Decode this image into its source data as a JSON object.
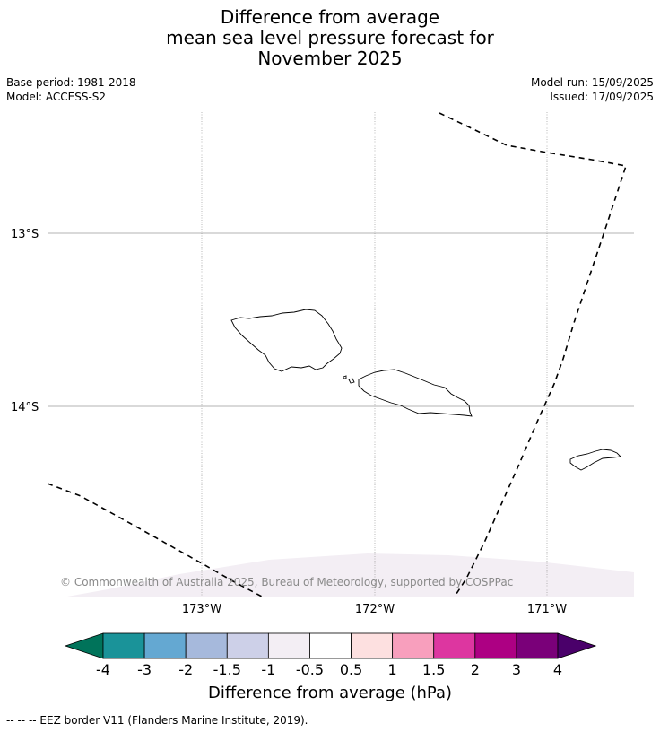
{
  "title": {
    "line1": "Difference from average",
    "line2": "mean sea level pressure forecast for",
    "line3": "November 2025"
  },
  "meta": {
    "base_period": "Base period: 1981-2018",
    "model": "Model: ACCESS-S2",
    "model_run": "Model run: 15/09/2025",
    "issued": "Issued: 17/09/2025"
  },
  "map": {
    "lat_labels": [
      "13°S",
      "14°S"
    ],
    "lon_labels": [
      "173°W",
      "172°W",
      "171°W"
    ],
    "copyright": "© Commonwealth of Australia 2025, Bureau of Meteorology, supported by COSPPac",
    "land_outline_color": "#000000",
    "anomaly_fill_color": "#f3eef4"
  },
  "colorbar": {
    "ticks": [
      "-4",
      "-3",
      "-2",
      "-1.5",
      "-1",
      "-0.5",
      "0.5",
      "1",
      "1.5",
      "2",
      "3",
      "4"
    ],
    "colors": [
      "#00735a",
      "#1a9399",
      "#64a8d2",
      "#a6b9dc",
      "#cdd0e8",
      "#f3eef4",
      "#ffffff",
      "#fde0e0",
      "#f89fbd",
      "#dd36a0",
      "#ad0083",
      "#7a0079",
      "#4a006a"
    ],
    "title": "Difference from average (hPa)"
  },
  "footnote": "-- -- -- EEZ border V11 (Flanders Marine Institute, 2019)."
}
